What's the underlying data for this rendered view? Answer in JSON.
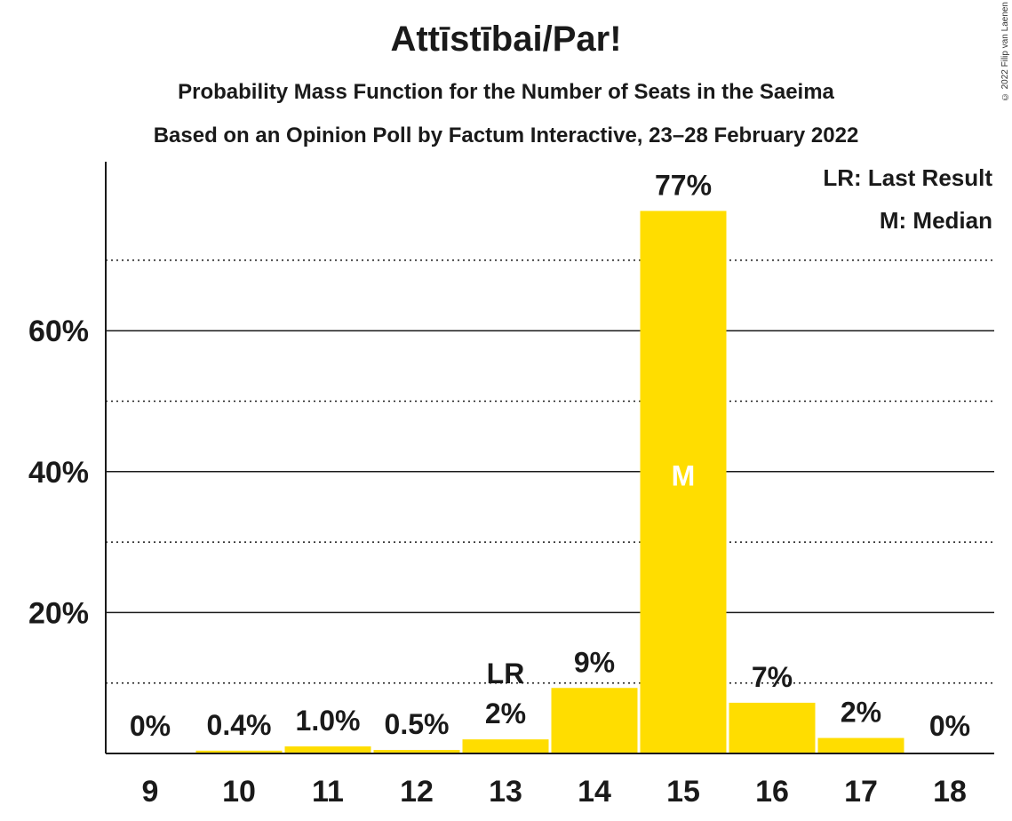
{
  "chart_data": {
    "type": "bar",
    "title": "Attīstībai/Par!",
    "subtitle_1": "Probability Mass Function for the Number of Seats in the Saeima",
    "subtitle_2": "Based on an Opinion Poll by Factum Interactive, 23–28 February 2022",
    "copyright": "© 2022 Filip van Laenen",
    "categories": [
      "9",
      "10",
      "11",
      "12",
      "13",
      "14",
      "15",
      "16",
      "17",
      "18"
    ],
    "values": [
      0,
      0.4,
      1.0,
      0.5,
      2,
      9.3,
      77,
      7.2,
      2.2,
      0
    ],
    "value_labels": [
      "0%",
      "0.4%",
      "1.0%",
      "0.5%",
      "2%",
      "9%",
      "77%",
      "7%",
      "2%",
      "0%"
    ],
    "last_result_category": "13",
    "median_category": "15",
    "last_result_marker": "LR",
    "median_marker": "M",
    "legend": [
      "LR: Last Result",
      "M: Median"
    ],
    "legend_position": "top-right",
    "ylim": [
      0,
      84
    ],
    "yticks": [
      20,
      40,
      60
    ],
    "ytick_labels": [
      "20%",
      "40%",
      "60%"
    ],
    "minor_gridlines": [
      10,
      30,
      50,
      70
    ],
    "bar_color": "#ffdd00",
    "text_color": "#1a1a1a"
  }
}
